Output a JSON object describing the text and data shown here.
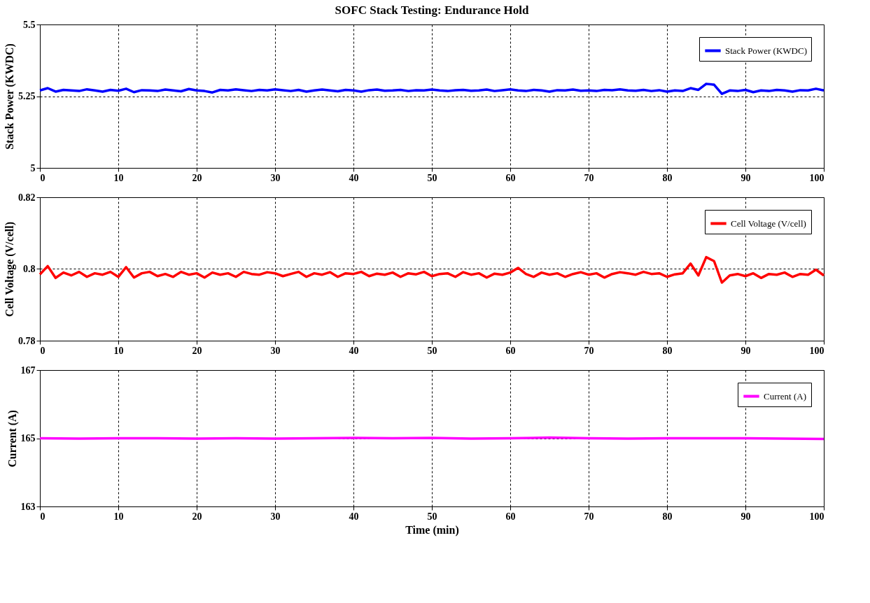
{
  "chart_data": [
    {
      "type": "line",
      "title": "SOFC Stack Testing: Endurance Hold",
      "ylabel": "Stack Power (KWDC)",
      "xlim": [
        0,
        100
      ],
      "xticks": [
        0,
        10,
        20,
        30,
        40,
        50,
        60,
        70,
        80,
        90,
        100
      ],
      "ylim": [
        5,
        5.5
      ],
      "yticks": [
        5,
        5.25,
        5.5
      ],
      "grid": true,
      "legend": "top right",
      "line_style": "solid",
      "marker": "none",
      "x": [
        0,
        1,
        2,
        3,
        4,
        5,
        6,
        7,
        8,
        9,
        10,
        11,
        12,
        13,
        14,
        15,
        16,
        17,
        18,
        19,
        20,
        21,
        22,
        23,
        24,
        25,
        26,
        27,
        28,
        29,
        30,
        31,
        32,
        33,
        34,
        35,
        36,
        37,
        38,
        39,
        40,
        41,
        42,
        43,
        44,
        45,
        46,
        47,
        48,
        49,
        50,
        51,
        52,
        53,
        54,
        55,
        56,
        57,
        58,
        59,
        60,
        61,
        62,
        63,
        64,
        65,
        66,
        67,
        68,
        69,
        70,
        71,
        72,
        73,
        74,
        75,
        76,
        77,
        78,
        79,
        80,
        81,
        82,
        83,
        84,
        85,
        86,
        87,
        88,
        89,
        90,
        91,
        92,
        93,
        94,
        95,
        96,
        97,
        98,
        99,
        100
      ],
      "series": [
        {
          "name": "Stack Power (KWDC)",
          "color": "#0000ff",
          "values": [
            5.27,
            5.278,
            5.266,
            5.272,
            5.27,
            5.268,
            5.274,
            5.27,
            5.266,
            5.272,
            5.269,
            5.276,
            5.264,
            5.271,
            5.27,
            5.268,
            5.273,
            5.27,
            5.267,
            5.275,
            5.27,
            5.268,
            5.263,
            5.272,
            5.27,
            5.274,
            5.271,
            5.268,
            5.272,
            5.27,
            5.274,
            5.271,
            5.268,
            5.272,
            5.266,
            5.27,
            5.273,
            5.27,
            5.267,
            5.272,
            5.27,
            5.266,
            5.271,
            5.273,
            5.269,
            5.27,
            5.272,
            5.268,
            5.271,
            5.27,
            5.273,
            5.27,
            5.268,
            5.271,
            5.272,
            5.269,
            5.27,
            5.273,
            5.268,
            5.271,
            5.274,
            5.27,
            5.268,
            5.272,
            5.27,
            5.266,
            5.271,
            5.27,
            5.273,
            5.269,
            5.27,
            5.268,
            5.272,
            5.271,
            5.274,
            5.27,
            5.269,
            5.272,
            5.268,
            5.271,
            5.266,
            5.27,
            5.268,
            5.278,
            5.272,
            5.293,
            5.29,
            5.258,
            5.27,
            5.268,
            5.272,
            5.264,
            5.27,
            5.268,
            5.272,
            5.27,
            5.266,
            5.271,
            5.27,
            5.276,
            5.27
          ]
        }
      ]
    },
    {
      "type": "line",
      "ylabel": "Cell Voltage (V/cell)",
      "xlim": [
        0,
        100
      ],
      "xticks": [
        0,
        10,
        20,
        30,
        40,
        50,
        60,
        70,
        80,
        90,
        100
      ],
      "ylim": [
        0.78,
        0.82
      ],
      "yticks": [
        0.78,
        0.8,
        0.82
      ],
      "grid": true,
      "legend": "top right",
      "line_style": "solid",
      "marker": "none",
      "x": [
        0,
        1,
        2,
        3,
        4,
        5,
        6,
        7,
        8,
        9,
        10,
        11,
        12,
        13,
        14,
        15,
        16,
        17,
        18,
        19,
        20,
        21,
        22,
        23,
        24,
        25,
        26,
        27,
        28,
        29,
        30,
        31,
        32,
        33,
        34,
        35,
        36,
        37,
        38,
        39,
        40,
        41,
        42,
        43,
        44,
        45,
        46,
        47,
        48,
        49,
        50,
        51,
        52,
        53,
        54,
        55,
        56,
        57,
        58,
        59,
        60,
        61,
        62,
        63,
        64,
        65,
        66,
        67,
        68,
        69,
        70,
        71,
        72,
        73,
        74,
        75,
        76,
        77,
        78,
        79,
        80,
        81,
        82,
        83,
        84,
        85,
        86,
        87,
        88,
        89,
        90,
        91,
        92,
        93,
        94,
        95,
        96,
        97,
        98,
        99,
        100
      ],
      "series": [
        {
          "name": "Cell Voltage (V/cell)",
          "color": "#ff0000",
          "values": [
            0.7985,
            0.8008,
            0.7975,
            0.799,
            0.7982,
            0.7992,
            0.7978,
            0.7988,
            0.7984,
            0.7992,
            0.7978,
            0.8005,
            0.7976,
            0.7988,
            0.7992,
            0.798,
            0.7986,
            0.7978,
            0.7992,
            0.7984,
            0.7988,
            0.7976,
            0.799,
            0.7984,
            0.7988,
            0.7978,
            0.7992,
            0.7986,
            0.7984,
            0.7991,
            0.7988,
            0.798,
            0.7986,
            0.7992,
            0.7978,
            0.7988,
            0.7984,
            0.7991,
            0.7978,
            0.7988,
            0.7986,
            0.7992,
            0.798,
            0.7987,
            0.7984,
            0.799,
            0.7978,
            0.7988,
            0.7985,
            0.7992,
            0.798,
            0.7986,
            0.7988,
            0.7978,
            0.7991,
            0.7984,
            0.7988,
            0.7976,
            0.7987,
            0.7984,
            0.799,
            0.8003,
            0.7986,
            0.7978,
            0.799,
            0.7984,
            0.7988,
            0.7978,
            0.7986,
            0.7991,
            0.7984,
            0.7988,
            0.7976,
            0.7986,
            0.7991,
            0.7988,
            0.7984,
            0.7992,
            0.7986,
            0.7988,
            0.7978,
            0.7985,
            0.7988,
            0.8015,
            0.7982,
            0.8033,
            0.8022,
            0.7962,
            0.7982,
            0.7986,
            0.798,
            0.7988,
            0.7975,
            0.7986,
            0.7984,
            0.799,
            0.7978,
            0.7986,
            0.7984,
            0.7998,
            0.7982
          ]
        }
      ]
    },
    {
      "type": "line",
      "ylabel": "Current (A)",
      "xlabel": "Time (min)",
      "xlim": [
        0,
        100
      ],
      "xticks": [
        0,
        10,
        20,
        30,
        40,
        50,
        60,
        70,
        80,
        90,
        100
      ],
      "ylim": [
        163,
        167
      ],
      "yticks": [
        163,
        165,
        167
      ],
      "grid": true,
      "legend": "top right",
      "line_style": "solid",
      "marker": "none",
      "x": [
        0,
        5,
        10,
        15,
        20,
        25,
        30,
        35,
        40,
        45,
        50,
        55,
        60,
        65,
        70,
        75,
        80,
        85,
        90,
        95,
        100
      ],
      "series": [
        {
          "name": "Current (A)",
          "color": "#ff00ff",
          "values": [
            165.0,
            164.99,
            165.0,
            165.0,
            164.99,
            165.0,
            164.99,
            165.0,
            165.01,
            165.0,
            165.01,
            164.99,
            165.0,
            165.02,
            165.0,
            164.99,
            165.0,
            165.0,
            165.0,
            164.99,
            164.98
          ]
        }
      ]
    }
  ]
}
